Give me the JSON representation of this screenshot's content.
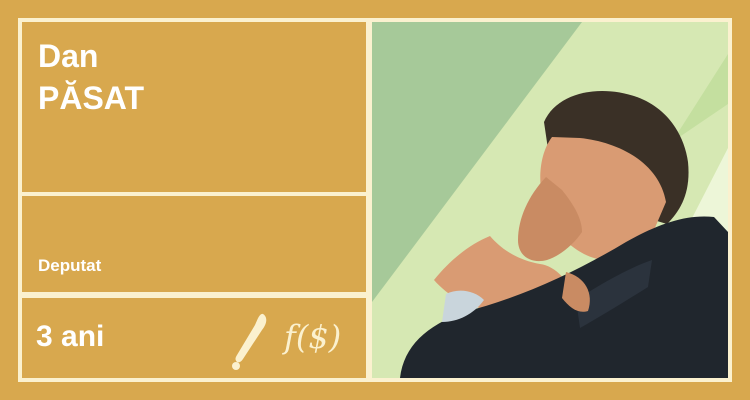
{
  "profile": {
    "first_name": "Dan",
    "last_name": "PĂSAT",
    "role": "Deputat",
    "years": "3 ani"
  },
  "icons": {
    "bat": "baseball-bat-icon",
    "function": "f($)",
    "function_name": "function-money-icon"
  },
  "colors": {
    "card_background": "#d8a84e",
    "border": "#fbf1cf",
    "text": "#ffffff",
    "portrait_background": "#d6e8b3",
    "portrait_shadow": "#a6c999",
    "suit": "#20262d",
    "skin": "#d99b73",
    "hair": "#3a3026"
  }
}
